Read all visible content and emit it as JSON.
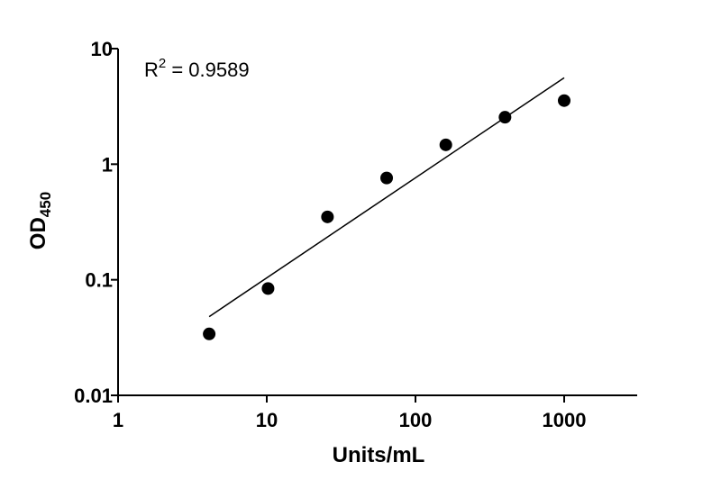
{
  "chart_data": {
    "type": "scatter",
    "x_scale": "log",
    "y_scale": "log",
    "xlim": [
      1,
      3000
    ],
    "ylim": [
      0.01,
      10
    ],
    "x_ticks": [
      1,
      10,
      100,
      1000
    ],
    "x_tick_labels": [
      "1",
      "10",
      "100",
      "1000"
    ],
    "y_ticks": [
      0.01,
      0.1,
      1,
      10
    ],
    "y_tick_labels": [
      "0.01",
      "0.1",
      "1",
      "10"
    ],
    "xlabel": "Units/mL",
    "ylabel": {
      "main": "OD",
      "subscript": "450"
    },
    "annotation": {
      "base": "R",
      "superscript": "2",
      "rest": " = 0.9589"
    },
    "grid": false,
    "points": [
      {
        "x": 4.1,
        "y": 0.034
      },
      {
        "x": 10.2,
        "y": 0.084
      },
      {
        "x": 25.6,
        "y": 0.35
      },
      {
        "x": 64,
        "y": 0.76
      },
      {
        "x": 160,
        "y": 1.47
      },
      {
        "x": 400,
        "y": 2.55
      },
      {
        "x": 1000,
        "y": 3.55
      }
    ],
    "fit_line": {
      "x": [
        4.1,
        1000
      ],
      "y": [
        0.048,
        5.6
      ]
    },
    "color": "#000000"
  }
}
